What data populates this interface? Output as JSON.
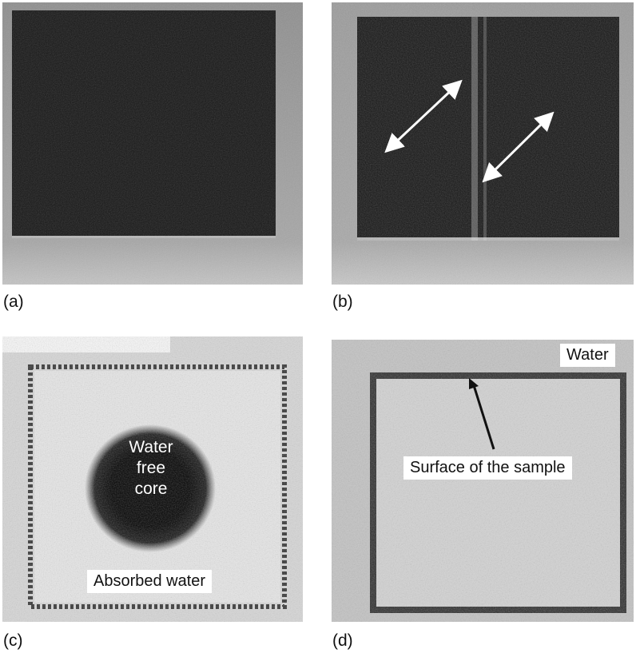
{
  "panels": {
    "a": {
      "caption": "(a)"
    },
    "b": {
      "caption": "(b)"
    },
    "c": {
      "caption": "(c)",
      "core_lines": [
        "Water",
        "free",
        "core"
      ],
      "absorbed_label": "Absorbed water"
    },
    "d": {
      "caption": "(d)",
      "water_label": "Water",
      "surface_label": "Surface of the sample"
    }
  },
  "colors": {
    "dark_sample": "#141414",
    "background_gray": "#9a9a9a",
    "wet_sample": "#cfcfcf",
    "arrow": "#ffffff"
  }
}
